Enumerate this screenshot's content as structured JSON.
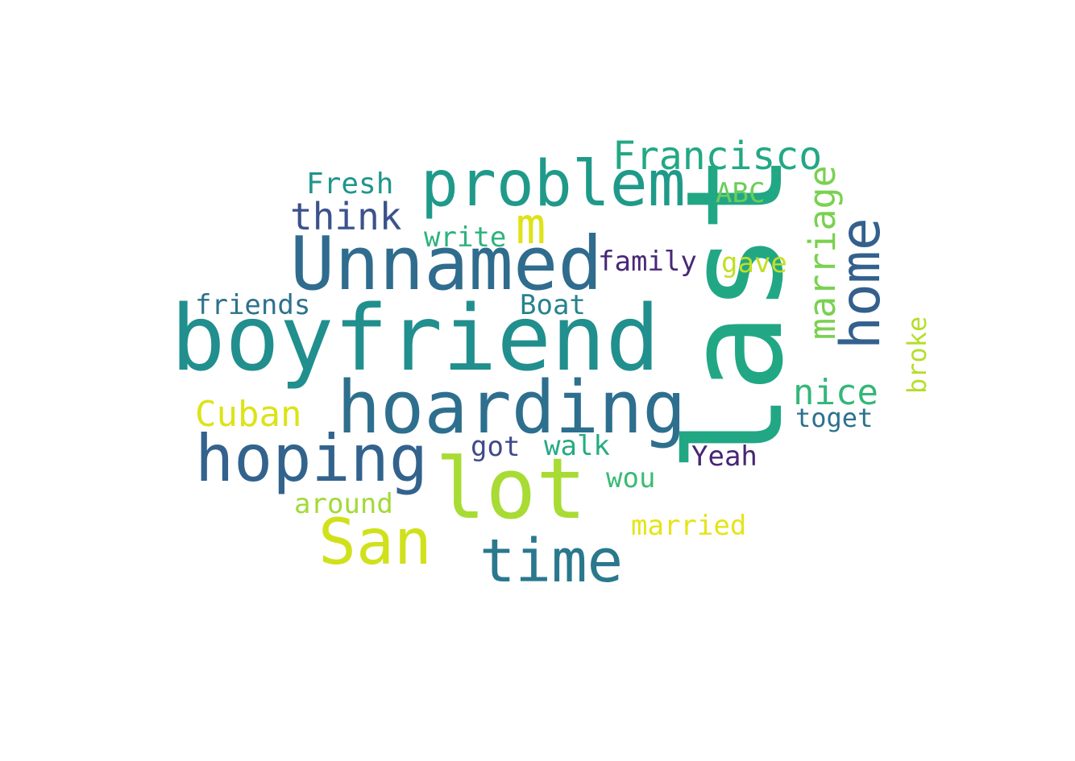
{
  "words": [
    {
      "text": "last",
      "color": "#22a785",
      "vertical": true
    },
    {
      "text": "boyfriend",
      "color": "#218f8d",
      "vertical": false
    },
    {
      "text": "lot",
      "color": "#a8db34",
      "vertical": false
    },
    {
      "text": "hoarding",
      "color": "#2e6f8e",
      "vertical": false
    },
    {
      "text": "Unnamed",
      "color": "#2f6c8e",
      "vertical": false
    },
    {
      "text": "hoping",
      "color": "#33638d",
      "vertical": false
    },
    {
      "text": "problem",
      "color": "#1f9a8a",
      "vertical": false
    },
    {
      "text": "San",
      "color": "#d0e11c",
      "vertical": false
    },
    {
      "text": "time",
      "color": "#2a788e",
      "vertical": false
    },
    {
      "text": "home",
      "color": "#34608d",
      "vertical": true
    },
    {
      "text": "m",
      "color": "#dde318",
      "vertical": false
    },
    {
      "text": "Francisco",
      "color": "#22a884",
      "vertical": false
    },
    {
      "text": "marriage",
      "color": "#7ad151",
      "vertical": true
    },
    {
      "text": "think",
      "color": "#3b528b",
      "vertical": false
    },
    {
      "text": "Cuban",
      "color": "#dde318",
      "vertical": false
    },
    {
      "text": "nice",
      "color": "#35b779",
      "vertical": false
    },
    {
      "text": "Fresh",
      "color": "#1f968b",
      "vertical": false
    },
    {
      "text": "ABC",
      "color": "#6ccd5a",
      "vertical": false
    },
    {
      "text": "write",
      "color": "#2db27d",
      "vertical": false
    },
    {
      "text": "family",
      "color": "#482878",
      "vertical": false
    },
    {
      "text": "gave",
      "color": "#c2df23",
      "vertical": false
    },
    {
      "text": "friends",
      "color": "#2c728e",
      "vertical": false
    },
    {
      "text": "Boat",
      "color": "#26828e",
      "vertical": false
    },
    {
      "text": "broke",
      "color": "#b5de2b",
      "vertical": true
    },
    {
      "text": "toget",
      "color": "#2d708e",
      "vertical": false
    },
    {
      "text": "got",
      "color": "#3e4a89",
      "vertical": false
    },
    {
      "text": "walk",
      "color": "#25ab82",
      "vertical": false
    },
    {
      "text": "Yeah",
      "color": "#482475",
      "vertical": false
    },
    {
      "text": "wou",
      "color": "#3bbb75",
      "vertical": false
    },
    {
      "text": "around",
      "color": "#a2da37",
      "vertical": false
    },
    {
      "text": "married",
      "color": "#e5e419",
      "vertical": false
    }
  ]
}
